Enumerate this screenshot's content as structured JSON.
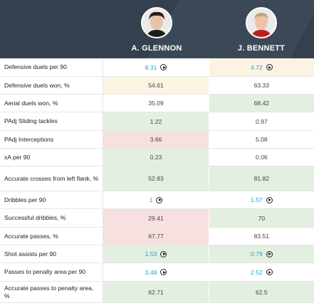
{
  "players": [
    {
      "name": "A. GLENNON"
    },
    {
      "name": "J. BENNETT"
    }
  ],
  "rows": [
    {
      "label": "Defensive duels per 90",
      "v1": "8.31",
      "v1_link": true,
      "v1_play": true,
      "v1_bg": "none",
      "v2": "4.72",
      "v2_link": true,
      "v2_play": true,
      "v2_bg": "yellow"
    },
    {
      "label": "Defensive duels won, %",
      "v1": "54.61",
      "v1_link": false,
      "v1_play": false,
      "v1_bg": "yellow",
      "v2": "63.33",
      "v2_link": false,
      "v2_play": false,
      "v2_bg": "none"
    },
    {
      "label": "Aerial duels won, %",
      "v1": "35.09",
      "v1_link": false,
      "v1_play": false,
      "v1_bg": "none",
      "v2": "68.42",
      "v2_link": false,
      "v2_play": false,
      "v2_bg": "green"
    },
    {
      "label": "PAdj Sliding tackles",
      "v1": "1.22",
      "v1_link": false,
      "v1_play": false,
      "v1_bg": "green",
      "v2": "0.97",
      "v2_link": false,
      "v2_play": false,
      "v2_bg": "none"
    },
    {
      "label": "PAdj Interceptions",
      "v1": "3.66",
      "v1_link": false,
      "v1_play": false,
      "v1_bg": "red",
      "v2": "5.08",
      "v2_link": false,
      "v2_play": false,
      "v2_bg": "none"
    },
    {
      "label": "xA per 90",
      "v1": "0.23",
      "v1_link": false,
      "v1_play": false,
      "v1_bg": "green",
      "v2": "0.06",
      "v2_link": false,
      "v2_play": false,
      "v2_bg": "none"
    },
    {
      "label": "Accurate crosses from left flank, %",
      "v1": "52.83",
      "v1_link": false,
      "v1_play": false,
      "v1_bg": "green",
      "v2": "81.82",
      "v2_link": false,
      "v2_play": false,
      "v2_bg": "green",
      "tall": true
    },
    {
      "label": "Dribbles per 90",
      "v1": "1",
      "v1_link": true,
      "v1_play": true,
      "v1_bg": "none",
      "v2": "1.57",
      "v2_link": true,
      "v2_play": true,
      "v2_bg": "none"
    },
    {
      "label": "Successful dribbles, %",
      "v1": "29.41",
      "v1_link": false,
      "v1_play": false,
      "v1_bg": "red",
      "v2": "70",
      "v2_link": false,
      "v2_play": false,
      "v2_bg": "green"
    },
    {
      "label": "Accurate passes, %",
      "v1": "67.77",
      "v1_link": false,
      "v1_play": false,
      "v1_bg": "red",
      "v2": "83.51",
      "v2_link": false,
      "v2_play": false,
      "v2_bg": "none"
    },
    {
      "label": "Shot assists per 90",
      "v1": "1.53",
      "v1_link": true,
      "v1_play": true,
      "v1_bg": "green",
      "v2": "0.79",
      "v2_link": true,
      "v2_play": true,
      "v2_bg": "green"
    },
    {
      "label": "Passes to penalty area per 90",
      "v1": "3.48",
      "v1_link": true,
      "v1_play": true,
      "v1_bg": "none",
      "v2": "2.52",
      "v2_link": true,
      "v2_play": true,
      "v2_bg": "none"
    },
    {
      "label": "Accurate passes to penalty area, %",
      "v1": "62.71",
      "v1_link": false,
      "v1_play": false,
      "v1_bg": "green",
      "v2": "62.5",
      "v2_link": false,
      "v2_play": false,
      "v2_bg": "green",
      "tall": true
    }
  ]
}
